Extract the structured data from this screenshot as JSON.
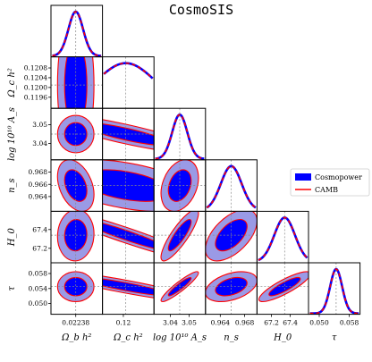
{
  "title": "CosmoSIS",
  "colors": {
    "cosmopower": "#0000ff",
    "cosmopower_outer": "#9a9ae6",
    "camb": "#ff0000",
    "crosshair": "#888888"
  },
  "chart_data": {
    "type": "corner",
    "title": "CosmoSIS",
    "legend": {
      "position": "right",
      "entries": [
        "Cosmopower",
        "CAMB"
      ]
    },
    "parameters": [
      {
        "name": "omega_b_h2",
        "label": "Ω_b h²",
        "mean": 0.02238,
        "sigma": 0.00015,
        "range": [
          0.0219,
          0.0229
        ],
        "ticks": [
          {
            "v": 0.02238,
            "t": "0.02238"
          }
        ]
      },
      {
        "name": "omega_c_h2",
        "label": "Ω_c h²",
        "mean": 0.1201,
        "sigma": 0.0012,
        "range": [
          0.1192,
          0.1212
        ],
        "ticks": [
          {
            "v": 0.1196,
            "t": "0.1196"
          },
          {
            "v": 0.12,
            "t": "0.1200"
          },
          {
            "v": 0.1204,
            "t": "0.1204"
          },
          {
            "v": 0.1208,
            "t": "0.1208"
          }
        ],
        "xticks": [
          {
            "v": 0.12,
            "t": "0.12"
          }
        ]
      },
      {
        "name": "log10A_s",
        "label": "log 10¹⁰ A_s",
        "mean": 3.045,
        "sigma": 0.004,
        "range": [
          3.032,
          3.058
        ],
        "ticks": [
          {
            "v": 3.04,
            "t": "3.04"
          },
          {
            "v": 3.05,
            "t": "3.05"
          }
        ]
      },
      {
        "name": "n_s",
        "label": "n_s",
        "mean": 0.9658,
        "sigma": 0.0017,
        "range": [
          0.9618,
          0.9698
        ],
        "ticks": [
          {
            "v": 0.964,
            "t": "0.964"
          },
          {
            "v": 0.966,
            "t": "0.966"
          },
          {
            "v": 0.968,
            "t": "0.968"
          }
        ],
        "xticks": [
          {
            "v": 0.964,
            "t": "0.964"
          },
          {
            "v": 0.968,
            "t": "0.968"
          }
        ]
      },
      {
        "name": "H0",
        "label": "H_0",
        "mean": 67.34,
        "sigma": 0.11,
        "range": [
          67.06,
          67.58
        ],
        "ticks": [
          {
            "v": 67.2,
            "t": "67.2"
          },
          {
            "v": 67.4,
            "t": "67.4"
          }
        ]
      },
      {
        "name": "tau",
        "label": "τ",
        "mean": 0.0545,
        "sigma": 0.0016,
        "range": [
          0.0475,
          0.0605
        ],
        "ticks": [
          {
            "v": 0.05,
            "t": "0.050"
          },
          {
            "v": 0.054,
            "t": "0.054"
          },
          {
            "v": 0.058,
            "t": "0.058"
          }
        ],
        "xticks": [
          {
            "v": 0.05,
            "t": "0.050"
          },
          {
            "v": 0.058,
            "t": "0.058"
          }
        ]
      }
    ],
    "correlations": [
      [
        "omega_c_h2",
        "omega_b_h2",
        0.0
      ],
      [
        "log10A_s",
        "omega_b_h2",
        0.0
      ],
      [
        "n_s",
        "omega_b_h2",
        -0.35
      ],
      [
        "H0",
        "omega_b_h2",
        0.05
      ],
      [
        "tau",
        "omega_b_h2",
        0.0
      ],
      [
        "log10A_s",
        "omega_c_h2",
        -0.85
      ],
      [
        "n_s",
        "omega_c_h2",
        -0.45
      ],
      [
        "H0",
        "omega_c_h2",
        -0.95
      ],
      [
        "tau",
        "omega_c_h2",
        -0.9
      ],
      [
        "n_s",
        "log10A_s",
        0.3
      ],
      [
        "H0",
        "log10A_s",
        0.85
      ],
      [
        "tau",
        "log10A_s",
        0.92
      ],
      [
        "H0",
        "n_s",
        0.55
      ],
      [
        "tau",
        "n_s",
        0.4
      ],
      [
        "tau",
        "H0",
        0.85
      ]
    ]
  }
}
